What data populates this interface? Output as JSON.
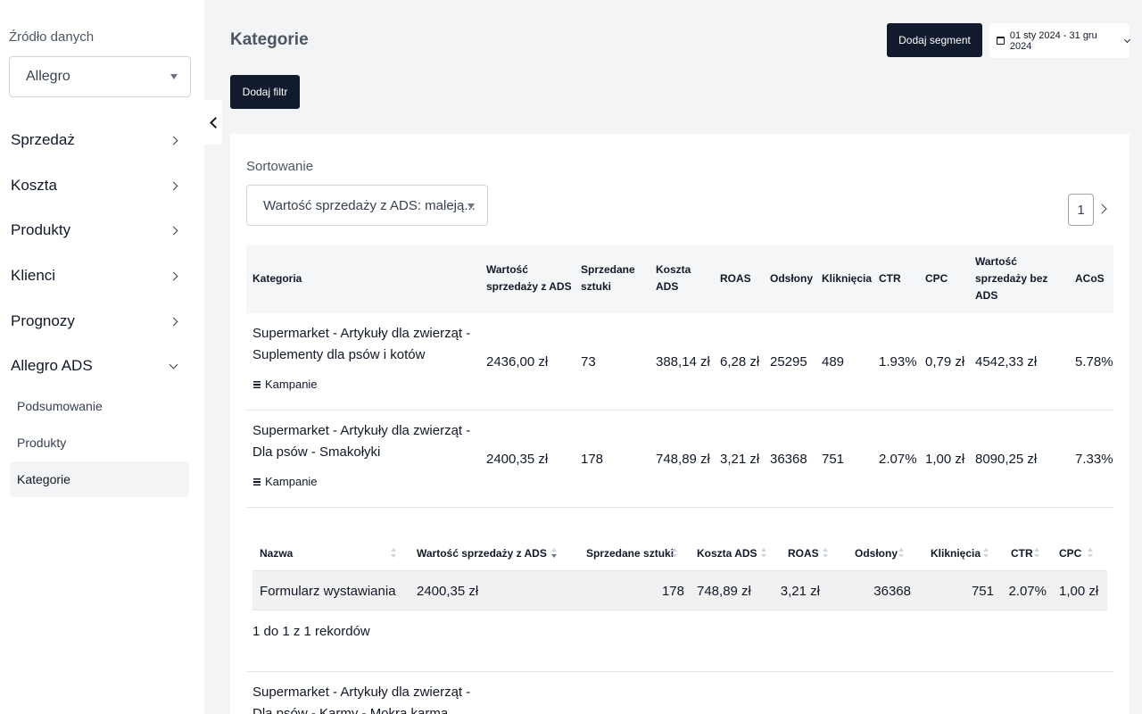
{
  "sidebar": {
    "source_label": "Źródło danych",
    "source_value": "Allegro",
    "nav": [
      {
        "label": "Sprzedaż"
      },
      {
        "label": "Koszta"
      },
      {
        "label": "Produkty"
      },
      {
        "label": "Klienci"
      },
      {
        "label": "Prognozy"
      },
      {
        "label": "Allegro ADS"
      }
    ],
    "sub": [
      {
        "label": "Podsumowanie"
      },
      {
        "label": "Produkty"
      },
      {
        "label": "Kategorie"
      }
    ]
  },
  "header": {
    "title": "Kategorie",
    "add_segment": "Dodaj segment",
    "date_range": "01 sty 2024 - 31 gru 2024",
    "add_filter": "Dodaj filtr"
  },
  "sorting": {
    "label": "Sortowanie",
    "value": "Wartość sprzedaży z ADS: maleją..."
  },
  "pagination": {
    "page": "1"
  },
  "table": {
    "headers": {
      "kategoria": "Kategoria",
      "wartosc_1": "Wartość",
      "wartosc_2": "sprzedaży z ADS",
      "sprzedane_1": "Sprzedane",
      "sprzedane_2": "sztuki",
      "koszta_1": "Koszta",
      "koszta_2": "ADS",
      "roas": "ROAS",
      "odslony": "Odsłony",
      "klikniecia": "Kliknięcia",
      "ctr": "CTR",
      "cpc": "CPC",
      "bez_1": "Wartość",
      "bez_2": "sprzedaży bez",
      "bez_3": "ADS",
      "acos": "ACoS"
    },
    "campaigns_label": "Kampanie",
    "rows": [
      {
        "name_1": "Supermarket - Artykuły dla zwierząt -",
        "name_2": "Suplementy dla psów i kotów",
        "wartosc": "2436,00 zł",
        "sztuki": "73",
        "koszta": "388,14 zł",
        "roas": "6,28 zł",
        "odslony": "25295",
        "klikniecia": "489",
        "ctr": "1.93%",
        "cpc": "0,79 zł",
        "bez_ads": "4542,33 zł",
        "acos": "5.78%"
      },
      {
        "name_1": "Supermarket - Artykuły dla zwierząt -",
        "name_2": "Dla psów - Smakołyki",
        "wartosc": "2400,35 zł",
        "sztuki": "178",
        "koszta": "748,89 zł",
        "roas": "3,21 zł",
        "odslony": "36368",
        "klikniecia": "751",
        "ctr": "2.07%",
        "cpc": "1,00 zł",
        "bez_ads": "8090,25 zł",
        "acos": "7.33%"
      }
    ],
    "row3": {
      "name_1": "Supermarket - Artykuły dla zwierząt -",
      "name_2": "Dla psów - Karmy - Mokra karma"
    }
  },
  "subtable": {
    "headers": {
      "nazwa": "Nazwa",
      "wartosc": "Wartość sprzedaży z ADS",
      "sztuki": "Sprzedane sztuki",
      "koszta": "Koszta ADS",
      "roas": "ROAS",
      "odslony": "Odsłony",
      "klikniecia": "Kliknięcia",
      "ctr": "CTR",
      "cpc": "CPC"
    },
    "row": {
      "nazwa": "Formularz wystawiania",
      "wartosc": "2400,35 zł",
      "sztuki": "178",
      "koszta": "748,89 zł",
      "roas": "3,21 zł",
      "odslony": "36368",
      "klikniecia": "751",
      "ctr": "2.07%",
      "cpc": "1,00 zł"
    },
    "records": "1 do 1 z 1 rekordów"
  }
}
